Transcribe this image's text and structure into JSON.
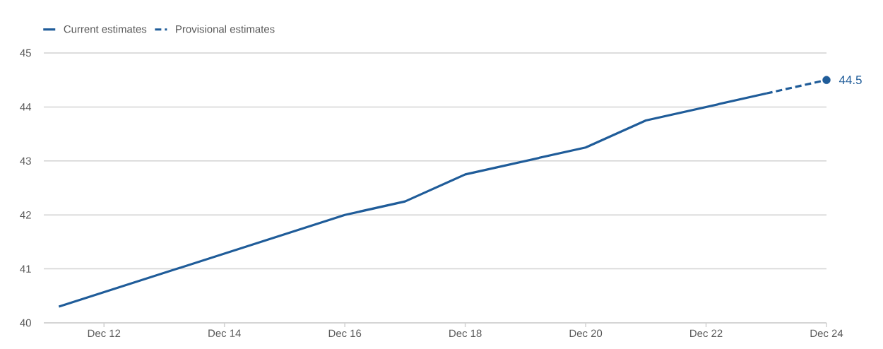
{
  "chart_data": {
    "type": "line",
    "x": [
      "2012-03",
      "2016-12",
      "2017-12",
      "2018-12",
      "2020-12",
      "2021-12",
      "2023-12"
    ],
    "series": [
      {
        "name": "Current estimates",
        "color": "#1f5c99",
        "line_style": "solid",
        "values": [
          40.3,
          42.0,
          42.25,
          42.75,
          43.25,
          43.75,
          44.25
        ]
      },
      {
        "name": "Provisional estimates",
        "color": "#1f5c99",
        "line_style": "dashed",
        "x": [
          "2023-12",
          "2024-12"
        ],
        "values": [
          44.25,
          44.5
        ]
      },
      {
        "type": "scatter",
        "color": "#1f5c99",
        "marker": "circle",
        "x": [
          "2024-12"
        ],
        "values": [
          44.5
        ]
      }
    ],
    "xlim": [
      "2011-12",
      "2024-12"
    ],
    "xticks": [
      {
        "value": "2012-12",
        "label": "Dec 12"
      },
      {
        "value": "2014-12",
        "label": "Dec 14"
      },
      {
        "value": "2016-12",
        "label": "Dec 16"
      },
      {
        "value": "2018-12",
        "label": "Dec 18"
      },
      {
        "value": "2020-12",
        "label": "Dec 20"
      },
      {
        "value": "2022-12",
        "label": "Dec 22"
      },
      {
        "value": "2024-12",
        "label": "Dec 24"
      }
    ],
    "ylim": [
      40,
      45
    ],
    "yticks": [
      40,
      41,
      42,
      43,
      44,
      45
    ],
    "grid": "y",
    "legend": "top left",
    "annotations": [
      {
        "text": "44.5",
        "x": "2024-12",
        "y": 44.5
      }
    ]
  }
}
